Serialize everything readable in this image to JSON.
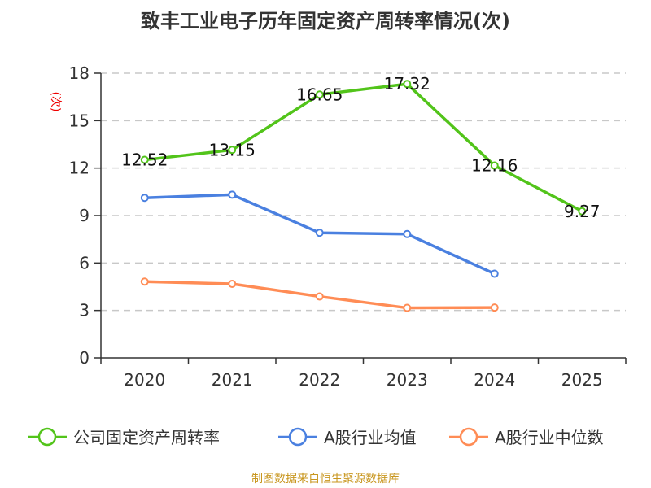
{
  "chart_data": {
    "type": "line",
    "title": "致丰工业电子历年固定资产周转率情况(次)",
    "ylabel": "(次)",
    "xlabel": "",
    "categories": [
      "2020",
      "2021",
      "2022",
      "2023",
      "2024",
      "2025"
    ],
    "ylim": [
      0,
      18
    ],
    "yticks": [
      0,
      3,
      6,
      9,
      12,
      15,
      18
    ],
    "grid": true,
    "legend_position": "bottom",
    "series": [
      {
        "name": "公司固定资产周转率",
        "color": "#52c41a",
        "values": [
          12.52,
          13.15,
          16.65,
          17.32,
          12.16,
          9.27
        ],
        "labels": [
          "12.52",
          "13.15",
          "16.65",
          "17.32",
          "12.16",
          "9.27"
        ]
      },
      {
        "name": "A股行业均值",
        "color": "#4a80e0",
        "values": [
          10.12,
          10.32,
          7.91,
          7.83,
          5.32,
          null
        ]
      },
      {
        "name": "A股行业中位数",
        "color": "#ff8c55",
        "values": [
          4.82,
          4.68,
          3.88,
          3.16,
          3.18,
          null
        ]
      }
    ]
  },
  "source": "制图数据来自恒生聚源数据库"
}
